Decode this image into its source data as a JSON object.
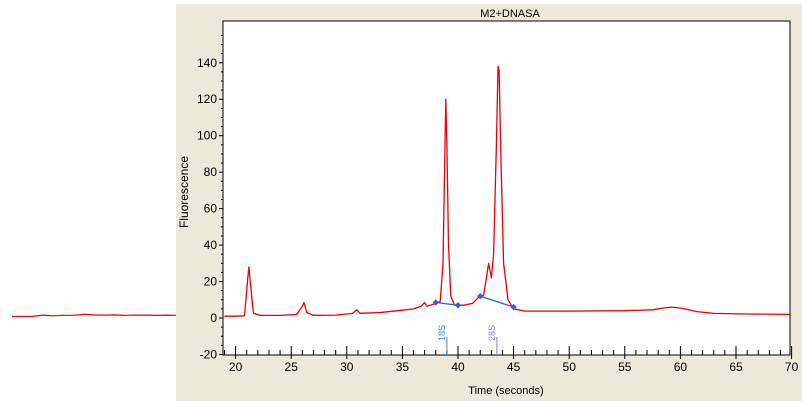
{
  "chart_data": {
    "type": "line",
    "title": "M2+DNASA",
    "xlabel": "Time (seconds)",
    "ylabel": "Fluorescence",
    "xlim": [
      19,
      70
    ],
    "ylim": [
      -20,
      158
    ],
    "x_ticks": [
      20,
      25,
      30,
      35,
      40,
      45,
      50,
      55,
      60,
      65,
      70
    ],
    "y_ticks": [
      -20,
      0,
      20,
      40,
      60,
      80,
      100,
      120,
      140
    ],
    "grid": false,
    "legend": "none",
    "colors": {
      "panel_background": "#ece9d8",
      "trace": "#e8000b",
      "baseline": "#3f5fc4",
      "peak_18s": "#3b8fd0",
      "peak_28s": "#8b82c8"
    },
    "series": [
      {
        "values": [
          [
            19,
            1.0
          ],
          [
            20,
            1.0
          ],
          [
            20.8,
            1.2
          ],
          [
            21.1,
            22.0
          ],
          [
            21.2,
            28.0
          ],
          [
            21.35,
            18.0
          ],
          [
            21.6,
            2.5
          ],
          [
            22.2,
            1.5
          ],
          [
            24,
            1.4
          ],
          [
            25.5,
            2.0
          ],
          [
            26.0,
            6.5
          ],
          [
            26.15,
            8.5
          ],
          [
            26.4,
            3.0
          ],
          [
            27,
            1.5
          ],
          [
            29,
            1.6
          ],
          [
            30.5,
            2.5
          ],
          [
            30.9,
            4.5
          ],
          [
            31.2,
            2.6
          ],
          [
            33,
            3.0
          ],
          [
            35,
            4.3
          ],
          [
            36,
            5.0
          ],
          [
            36.7,
            6.5
          ],
          [
            37.0,
            8.5
          ],
          [
            37.2,
            6.5
          ],
          [
            37.8,
            7.5
          ],
          [
            38.4,
            9.0
          ],
          [
            38.65,
            30.0
          ],
          [
            38.8,
            85.0
          ],
          [
            38.9,
            120.0
          ],
          [
            39.0,
            95.0
          ],
          [
            39.15,
            40.0
          ],
          [
            39.35,
            12.0
          ],
          [
            39.7,
            7.0
          ],
          [
            40.5,
            7.0
          ],
          [
            41.3,
            8.0
          ],
          [
            41.8,
            11.0
          ],
          [
            42.3,
            12.5
          ],
          [
            42.55,
            22.0
          ],
          [
            42.75,
            30.0
          ],
          [
            43.0,
            22.0
          ],
          [
            43.2,
            35.0
          ],
          [
            43.45,
            95.0
          ],
          [
            43.6,
            138.0
          ],
          [
            43.7,
            136.0
          ],
          [
            43.85,
            90.0
          ],
          [
            44.1,
            30.0
          ],
          [
            44.5,
            10.0
          ],
          [
            45.0,
            5.0
          ],
          [
            46,
            3.8
          ],
          [
            50,
            3.8
          ],
          [
            55,
            4.0
          ],
          [
            57.5,
            4.5
          ],
          [
            58.5,
            5.5
          ],
          [
            59.2,
            6.0
          ],
          [
            60,
            5.5
          ],
          [
            61.5,
            3.5
          ],
          [
            63,
            2.5
          ],
          [
            66,
            2.2
          ],
          [
            70,
            2.0
          ]
        ]
      }
    ],
    "baseline_segments": [
      {
        "points": [
          [
            38.0,
            8.5
          ],
          [
            40.0,
            7.0
          ]
        ]
      },
      {
        "points": [
          [
            42.0,
            12.0
          ],
          [
            45.0,
            6.0
          ]
        ]
      }
    ],
    "peak_markers": [
      {
        "label": "18S",
        "x": 39.0
      },
      {
        "label": "28S",
        "x": 43.5
      }
    ],
    "pre_trace_values": [
      [
        0,
        0.8
      ],
      [
        2,
        0.9
      ],
      [
        3,
        1.6
      ],
      [
        4,
        1.2
      ],
      [
        5,
        1.5
      ],
      [
        6,
        1.5
      ],
      [
        7,
        2.0
      ],
      [
        8,
        1.7
      ],
      [
        9,
        1.6
      ],
      [
        10,
        1.7
      ],
      [
        11,
        1.4
      ],
      [
        12,
        1.6
      ],
      [
        13,
        1.6
      ],
      [
        14,
        1.4
      ],
      [
        15,
        1.6
      ],
      [
        16,
        1.5
      ]
    ]
  }
}
